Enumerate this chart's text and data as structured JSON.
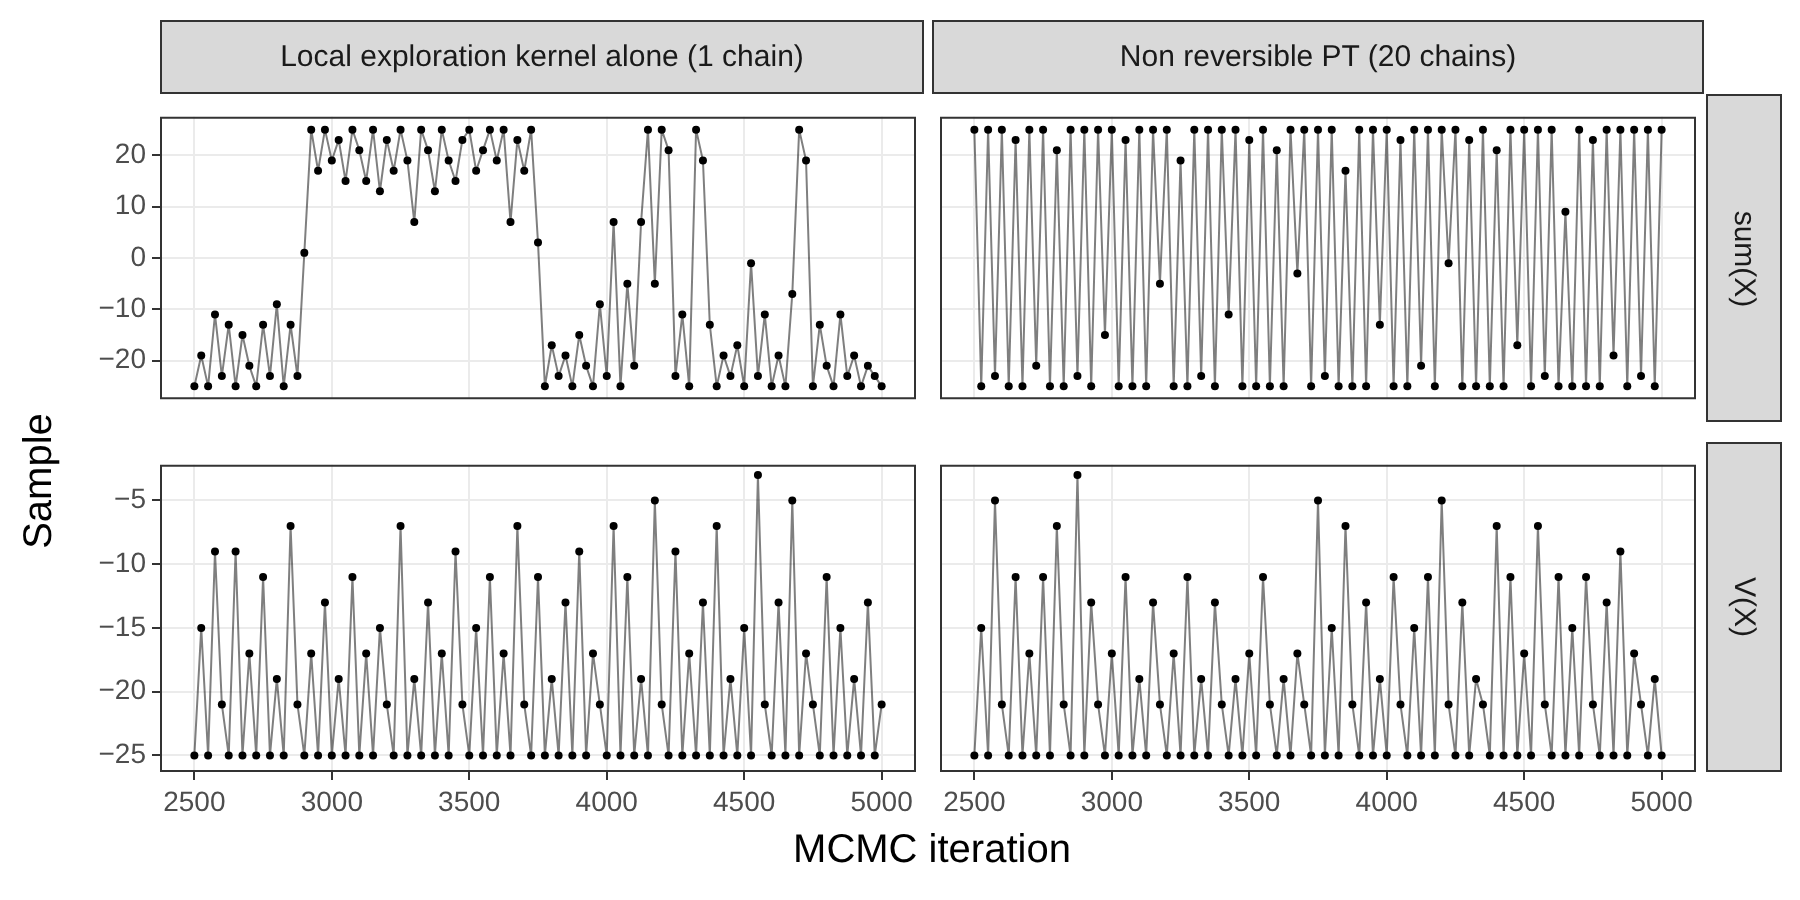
{
  "chart_data": [
    {
      "type": "line",
      "title": "Local exploration kernel alone (1 chain)",
      "ylabel": "Sample",
      "marker": "circle",
      "line_style": "solid",
      "grid": true,
      "tick_labels": "y",
      "xlim": [
        2375,
        5125
      ],
      "xticks": [
        2500,
        3000,
        3500,
        4000,
        4500,
        5000
      ],
      "ylim": [
        -27.5,
        27.5
      ],
      "yticks": [
        -20,
        -10,
        0,
        10,
        20
      ],
      "x": [
        2500,
        2525,
        2550,
        2575,
        2600,
        2625,
        2650,
        2675,
        2700,
        2725,
        2750,
        2775,
        2800,
        2825,
        2850,
        2875,
        2900,
        2925,
        2950,
        2975,
        3000,
        3025,
        3050,
        3075,
        3100,
        3125,
        3150,
        3175,
        3200,
        3225,
        3250,
        3275,
        3300,
        3325,
        3350,
        3375,
        3400,
        3425,
        3450,
        3475,
        3500,
        3525,
        3550,
        3575,
        3600,
        3625,
        3650,
        3675,
        3700,
        3725,
        3750,
        3775,
        3800,
        3825,
        3850,
        3875,
        3900,
        3925,
        3950,
        3975,
        4000,
        4025,
        4050,
        4075,
        4100,
        4125,
        4150,
        4175,
        4200,
        4225,
        4250,
        4275,
        4300,
        4325,
        4350,
        4375,
        4400,
        4425,
        4450,
        4475,
        4500,
        4525,
        4550,
        4575,
        4600,
        4625,
        4650,
        4675,
        4700,
        4725,
        4750,
        4775,
        4800,
        4825,
        4850,
        4875,
        4900,
        4925,
        4950,
        4975,
        5000
      ],
      "series": [
        {
          "color": "#000000",
          "values": [
            -25,
            -19,
            -25,
            -11,
            -23,
            -13,
            -25,
            -15,
            -21,
            -25,
            -13,
            -23,
            -9,
            -25,
            -13,
            -23,
            1,
            25,
            17,
            25,
            19,
            23,
            15,
            25,
            21,
            15,
            25,
            13,
            23,
            17,
            25,
            19,
            7,
            25,
            21,
            13,
            25,
            19,
            15,
            23,
            25,
            17,
            21,
            25,
            19,
            25,
            7,
            23,
            17,
            25,
            3,
            -25,
            -17,
            -23,
            -19,
            -25,
            -15,
            -21,
            -25,
            -9,
            -23,
            7,
            -25,
            -5,
            -21,
            7,
            25,
            -5,
            25,
            21,
            -23,
            -11,
            -25,
            25,
            19,
            -13,
            -25,
            -19,
            -23,
            -17,
            -25,
            -1,
            -23,
            -11,
            -25,
            -19,
            -25,
            -7,
            25,
            19,
            -25,
            -13,
            -21,
            -25,
            -11,
            -23,
            -19,
            -25,
            -21,
            -23,
            -25
          ]
        }
      ]
    },
    {
      "type": "line",
      "title": "Non reversible PT (20 chains)",
      "y2label": "sum(X)",
      "marker": "circle",
      "line_style": "solid",
      "grid": true,
      "tick_labels": false,
      "xlim": [
        2375,
        5125
      ],
      "xticks": [
        2500,
        3000,
        3500,
        4000,
        4500,
        5000
      ],
      "ylim": [
        -27.5,
        27.5
      ],
      "yticks": [
        -20,
        -10,
        0,
        10,
        20
      ],
      "x": [
        2500,
        2525,
        2550,
        2575,
        2600,
        2625,
        2650,
        2675,
        2700,
        2725,
        2750,
        2775,
        2800,
        2825,
        2850,
        2875,
        2900,
        2925,
        2950,
        2975,
        3000,
        3025,
        3050,
        3075,
        3100,
        3125,
        3150,
        3175,
        3200,
        3225,
        3250,
        3275,
        3300,
        3325,
        3350,
        3375,
        3400,
        3425,
        3450,
        3475,
        3500,
        3525,
        3550,
        3575,
        3600,
        3625,
        3650,
        3675,
        3700,
        3725,
        3750,
        3775,
        3800,
        3825,
        3850,
        3875,
        3900,
        3925,
        3950,
        3975,
        4000,
        4025,
        4050,
        4075,
        4100,
        4125,
        4150,
        4175,
        4200,
        4225,
        4250,
        4275,
        4300,
        4325,
        4350,
        4375,
        4400,
        4425,
        4450,
        4475,
        4500,
        4525,
        4550,
        4575,
        4600,
        4625,
        4650,
        4675,
        4700,
        4725,
        4750,
        4775,
        4800,
        4825,
        4850,
        4875,
        4900,
        4925,
        4950,
        4975,
        5000
      ],
      "series": [
        {
          "color": "#000000",
          "values": [
            25,
            -25,
            25,
            -23,
            25,
            -25,
            23,
            -25,
            25,
            -21,
            25,
            -25,
            21,
            -25,
            25,
            -23,
            25,
            -25,
            25,
            -15,
            25,
            -25,
            23,
            -25,
            25,
            -25,
            25,
            -5,
            25,
            -25,
            19,
            -25,
            25,
            -23,
            25,
            -25,
            25,
            -11,
            25,
            -25,
            23,
            -25,
            25,
            -25,
            21,
            -25,
            25,
            -3,
            25,
            -25,
            25,
            -23,
            25,
            -25,
            17,
            -25,
            25,
            -25,
            25,
            -13,
            25,
            -25,
            23,
            -25,
            25,
            -21,
            25,
            -25,
            25,
            -1,
            25,
            -25,
            23,
            -25,
            25,
            -25,
            21,
            -25,
            25,
            -17,
            25,
            -25,
            25,
            -23,
            25,
            -25,
            9,
            -25,
            25,
            -25,
            23,
            -25,
            25,
            -19,
            25,
            -25,
            25,
            -23,
            25,
            -25,
            25
          ]
        }
      ]
    },
    {
      "type": "line",
      "xlabel": "MCMC iteration",
      "marker": "circle",
      "line_style": "solid",
      "grid": true,
      "xlim": [
        2375,
        5125
      ],
      "xticks": [
        2500,
        3000,
        3500,
        4000,
        4500,
        5000
      ],
      "ylim": [
        -26.3,
        -2.2
      ],
      "yticks": [
        -25,
        -20,
        -15,
        -10,
        -5
      ],
      "x": [
        2500,
        2525,
        2550,
        2575,
        2600,
        2625,
        2650,
        2675,
        2700,
        2725,
        2750,
        2775,
        2800,
        2825,
        2850,
        2875,
        2900,
        2925,
        2950,
        2975,
        3000,
        3025,
        3050,
        3075,
        3100,
        3125,
        3150,
        3175,
        3200,
        3225,
        3250,
        3275,
        3300,
        3325,
        3350,
        3375,
        3400,
        3425,
        3450,
        3475,
        3500,
        3525,
        3550,
        3575,
        3600,
        3625,
        3650,
        3675,
        3700,
        3725,
        3750,
        3775,
        3800,
        3825,
        3850,
        3875,
        3900,
        3925,
        3950,
        3975,
        4000,
        4025,
        4050,
        4075,
        4100,
        4125,
        4150,
        4175,
        4200,
        4225,
        4250,
        4275,
        4300,
        4325,
        4350,
        4375,
        4400,
        4425,
        4450,
        4475,
        4500,
        4525,
        4550,
        4575,
        4600,
        4625,
        4650,
        4675,
        4700,
        4725,
        4750,
        4775,
        4800,
        4825,
        4850,
        4875,
        4900,
        4925,
        4950,
        4975,
        5000
      ],
      "series": [
        {
          "color": "#000000",
          "values": [
            -25,
            -15,
            -25,
            -9,
            -21,
            -25,
            -9,
            -25,
            -17,
            -25,
            -11,
            -25,
            -19,
            -25,
            -7,
            -21,
            -25,
            -17,
            -25,
            -13,
            -25,
            -19,
            -25,
            -11,
            -25,
            -17,
            -25,
            -15,
            -21,
            -25,
            -7,
            -25,
            -19,
            -25,
            -13,
            -25,
            -17,
            -25,
            -9,
            -21,
            -25,
            -15,
            -25,
            -11,
            -25,
            -17,
            -25,
            -7,
            -21,
            -25,
            -11,
            -25,
            -19,
            -25,
            -13,
            -25,
            -9,
            -25,
            -17,
            -21,
            -25,
            -7,
            -25,
            -11,
            -25,
            -19,
            -25,
            -5,
            -21,
            -25,
            -9,
            -25,
            -17,
            -25,
            -13,
            -25,
            -7,
            -25,
            -19,
            -25,
            -15,
            -25,
            -3,
            -21,
            -25,
            -13,
            -25,
            -5,
            -25,
            -17,
            -21,
            -25,
            -11,
            -25,
            -15,
            -25,
            -19,
            -25,
            -13,
            -25,
            -21
          ]
        }
      ]
    },
    {
      "type": "line",
      "y2label": "V(X)",
      "marker": "circle",
      "line_style": "solid",
      "grid": true,
      "tick_labels": "x",
      "xlim": [
        2375,
        5125
      ],
      "xticks": [
        2500,
        3000,
        3500,
        4000,
        4500,
        5000
      ],
      "ylim": [
        -26.3,
        -2.2
      ],
      "yticks": [
        -25,
        -20,
        -15,
        -10,
        -5
      ],
      "x": [
        2500,
        2525,
        2550,
        2575,
        2600,
        2625,
        2650,
        2675,
        2700,
        2725,
        2750,
        2775,
        2800,
        2825,
        2850,
        2875,
        2900,
        2925,
        2950,
        2975,
        3000,
        3025,
        3050,
        3075,
        3100,
        3125,
        3150,
        3175,
        3200,
        3225,
        3250,
        3275,
        3300,
        3325,
        3350,
        3375,
        3400,
        3425,
        3450,
        3475,
        3500,
        3525,
        3550,
        3575,
        3600,
        3625,
        3650,
        3675,
        3700,
        3725,
        3750,
        3775,
        3800,
        3825,
        3850,
        3875,
        3900,
        3925,
        3950,
        3975,
        4000,
        4025,
        4050,
        4075,
        4100,
        4125,
        4150,
        4175,
        4200,
        4225,
        4250,
        4275,
        4300,
        4325,
        4350,
        4375,
        4400,
        4425,
        4450,
        4475,
        4500,
        4525,
        4550,
        4575,
        4600,
        4625,
        4650,
        4675,
        4700,
        4725,
        4750,
        4775,
        4800,
        4825,
        4850,
        4875,
        4900,
        4925,
        4950,
        4975,
        5000
      ],
      "series": [
        {
          "color": "#000000",
          "values": [
            -25,
            -15,
            -25,
            -5,
            -21,
            -25,
            -11,
            -25,
            -17,
            -25,
            -11,
            -25,
            -7,
            -21,
            -25,
            -3,
            -25,
            -13,
            -21,
            -25,
            -17,
            -25,
            -11,
            -25,
            -19,
            -25,
            -13,
            -21,
            -25,
            -17,
            -25,
            -11,
            -25,
            -19,
            -25,
            -13,
            -21,
            -25,
            -19,
            -25,
            -17,
            -25,
            -11,
            -21,
            -25,
            -19,
            -25,
            -17,
            -21,
            -25,
            -5,
            -25,
            -15,
            -25,
            -7,
            -21,
            -25,
            -13,
            -25,
            -19,
            -25,
            -11,
            -21,
            -25,
            -15,
            -25,
            -11,
            -25,
            -5,
            -21,
            -25,
            -13,
            -25,
            -19,
            -21,
            -25,
            -7,
            -25,
            -11,
            -25,
            -17,
            -25,
            -7,
            -21,
            -25,
            -11,
            -25,
            -15,
            -25,
            -11,
            -21,
            -25,
            -13,
            -25,
            -9,
            -25,
            -17,
            -21,
            -25,
            -19,
            -25
          ]
        }
      ]
    }
  ]
}
